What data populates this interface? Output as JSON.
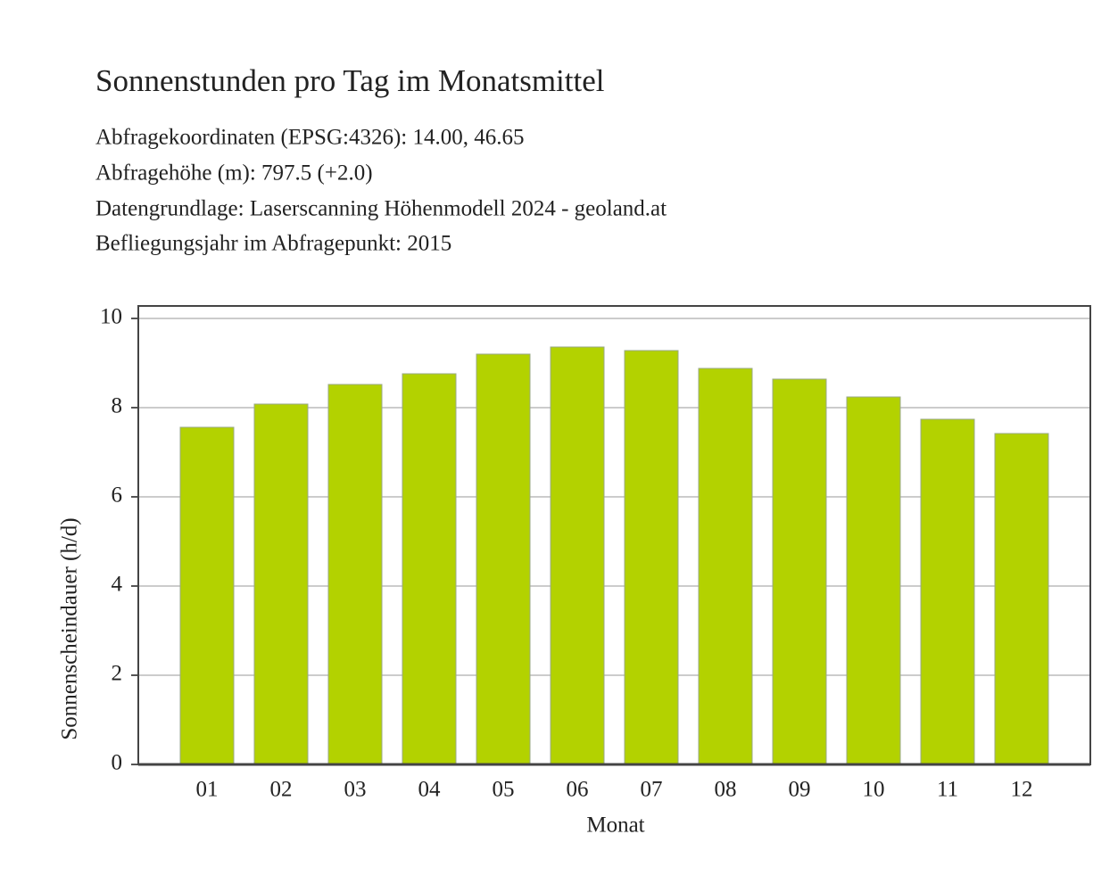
{
  "chart_data": {
    "type": "bar",
    "title": "Sonnenstunden pro Tag im Monatsmittel",
    "subtitle": [
      "Abfragekoordinaten (EPSG:4326): 14.00, 46.65",
      "Abfragehöhe (m): 797.5 (+2.0)",
      "Datengrundlage: Laserscanning Höhenmodell 2024 - geoland.at",
      "Befliegungsjahr im Abfragepunkt: 2015"
    ],
    "x_label": "Monat",
    "y_label": "Sonnenscheindauer (h/d)",
    "categories": [
      "01",
      "02",
      "03",
      "04",
      "05",
      "06",
      "07",
      "08",
      "09",
      "10",
      "11",
      "12"
    ],
    "values": [
      7.56,
      8.08,
      8.52,
      8.76,
      9.2,
      9.36,
      9.28,
      8.88,
      8.64,
      8.24,
      7.74,
      7.42
    ],
    "color": "#b3d200",
    "ylim": [
      0,
      10.28
    ],
    "yticks": [
      0,
      2,
      4,
      6,
      8,
      10
    ],
    "grid": true
  }
}
